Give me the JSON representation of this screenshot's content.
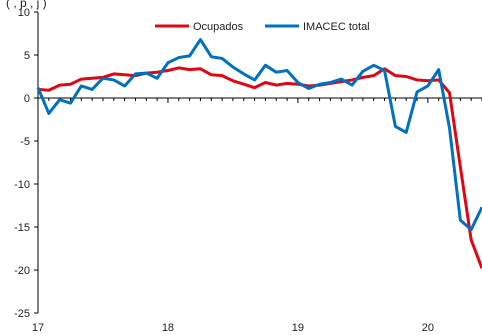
{
  "chart_data": {
    "type": "line",
    "title_fragment": "(  ,  p  ,  j  )",
    "xlabel": "",
    "ylabel": "",
    "ylim": [
      -25,
      10
    ],
    "y_ticks": [
      10,
      5,
      0,
      -5,
      -10,
      -15,
      -20,
      -25
    ],
    "x_tick_labels": [
      "17",
      "18",
      "19",
      "20"
    ],
    "x_tick_positions": [
      0,
      12,
      24,
      36
    ],
    "xlim": [
      0,
      41
    ],
    "grid": false,
    "legend_position": "top-center",
    "series": [
      {
        "name": "Ocupados",
        "color": "#e10613",
        "values": [
          1.0,
          0.9,
          1.5,
          1.6,
          2.2,
          2.3,
          2.4,
          2.8,
          2.7,
          2.6,
          2.9,
          3.0,
          3.2,
          3.5,
          3.3,
          3.4,
          2.7,
          2.6,
          2.0,
          1.6,
          1.2,
          1.8,
          1.5,
          1.7,
          1.6,
          1.4,
          1.5,
          1.7,
          1.9,
          2.1,
          2.4,
          2.6,
          3.4,
          2.6,
          2.5,
          2.1,
          2.0,
          2.1,
          0.6,
          -8.0,
          -16.5,
          -19.8
        ]
      },
      {
        "name": "IMACEC total",
        "color": "#0070c0",
        "values": [
          1.2,
          -1.8,
          -0.2,
          -0.6,
          1.4,
          1.0,
          2.3,
          2.1,
          1.4,
          2.8,
          2.9,
          2.3,
          4.1,
          4.7,
          4.9,
          6.8,
          4.8,
          4.6,
          3.6,
          2.8,
          2.1,
          3.8,
          3.0,
          3.2,
          1.8,
          1.1,
          1.6,
          1.8,
          2.2,
          1.5,
          3.1,
          3.8,
          3.2,
          -3.3,
          -4.0,
          0.7,
          1.4,
          3.3,
          -3.5,
          -14.2,
          -15.3,
          -12.7
        ]
      }
    ]
  }
}
